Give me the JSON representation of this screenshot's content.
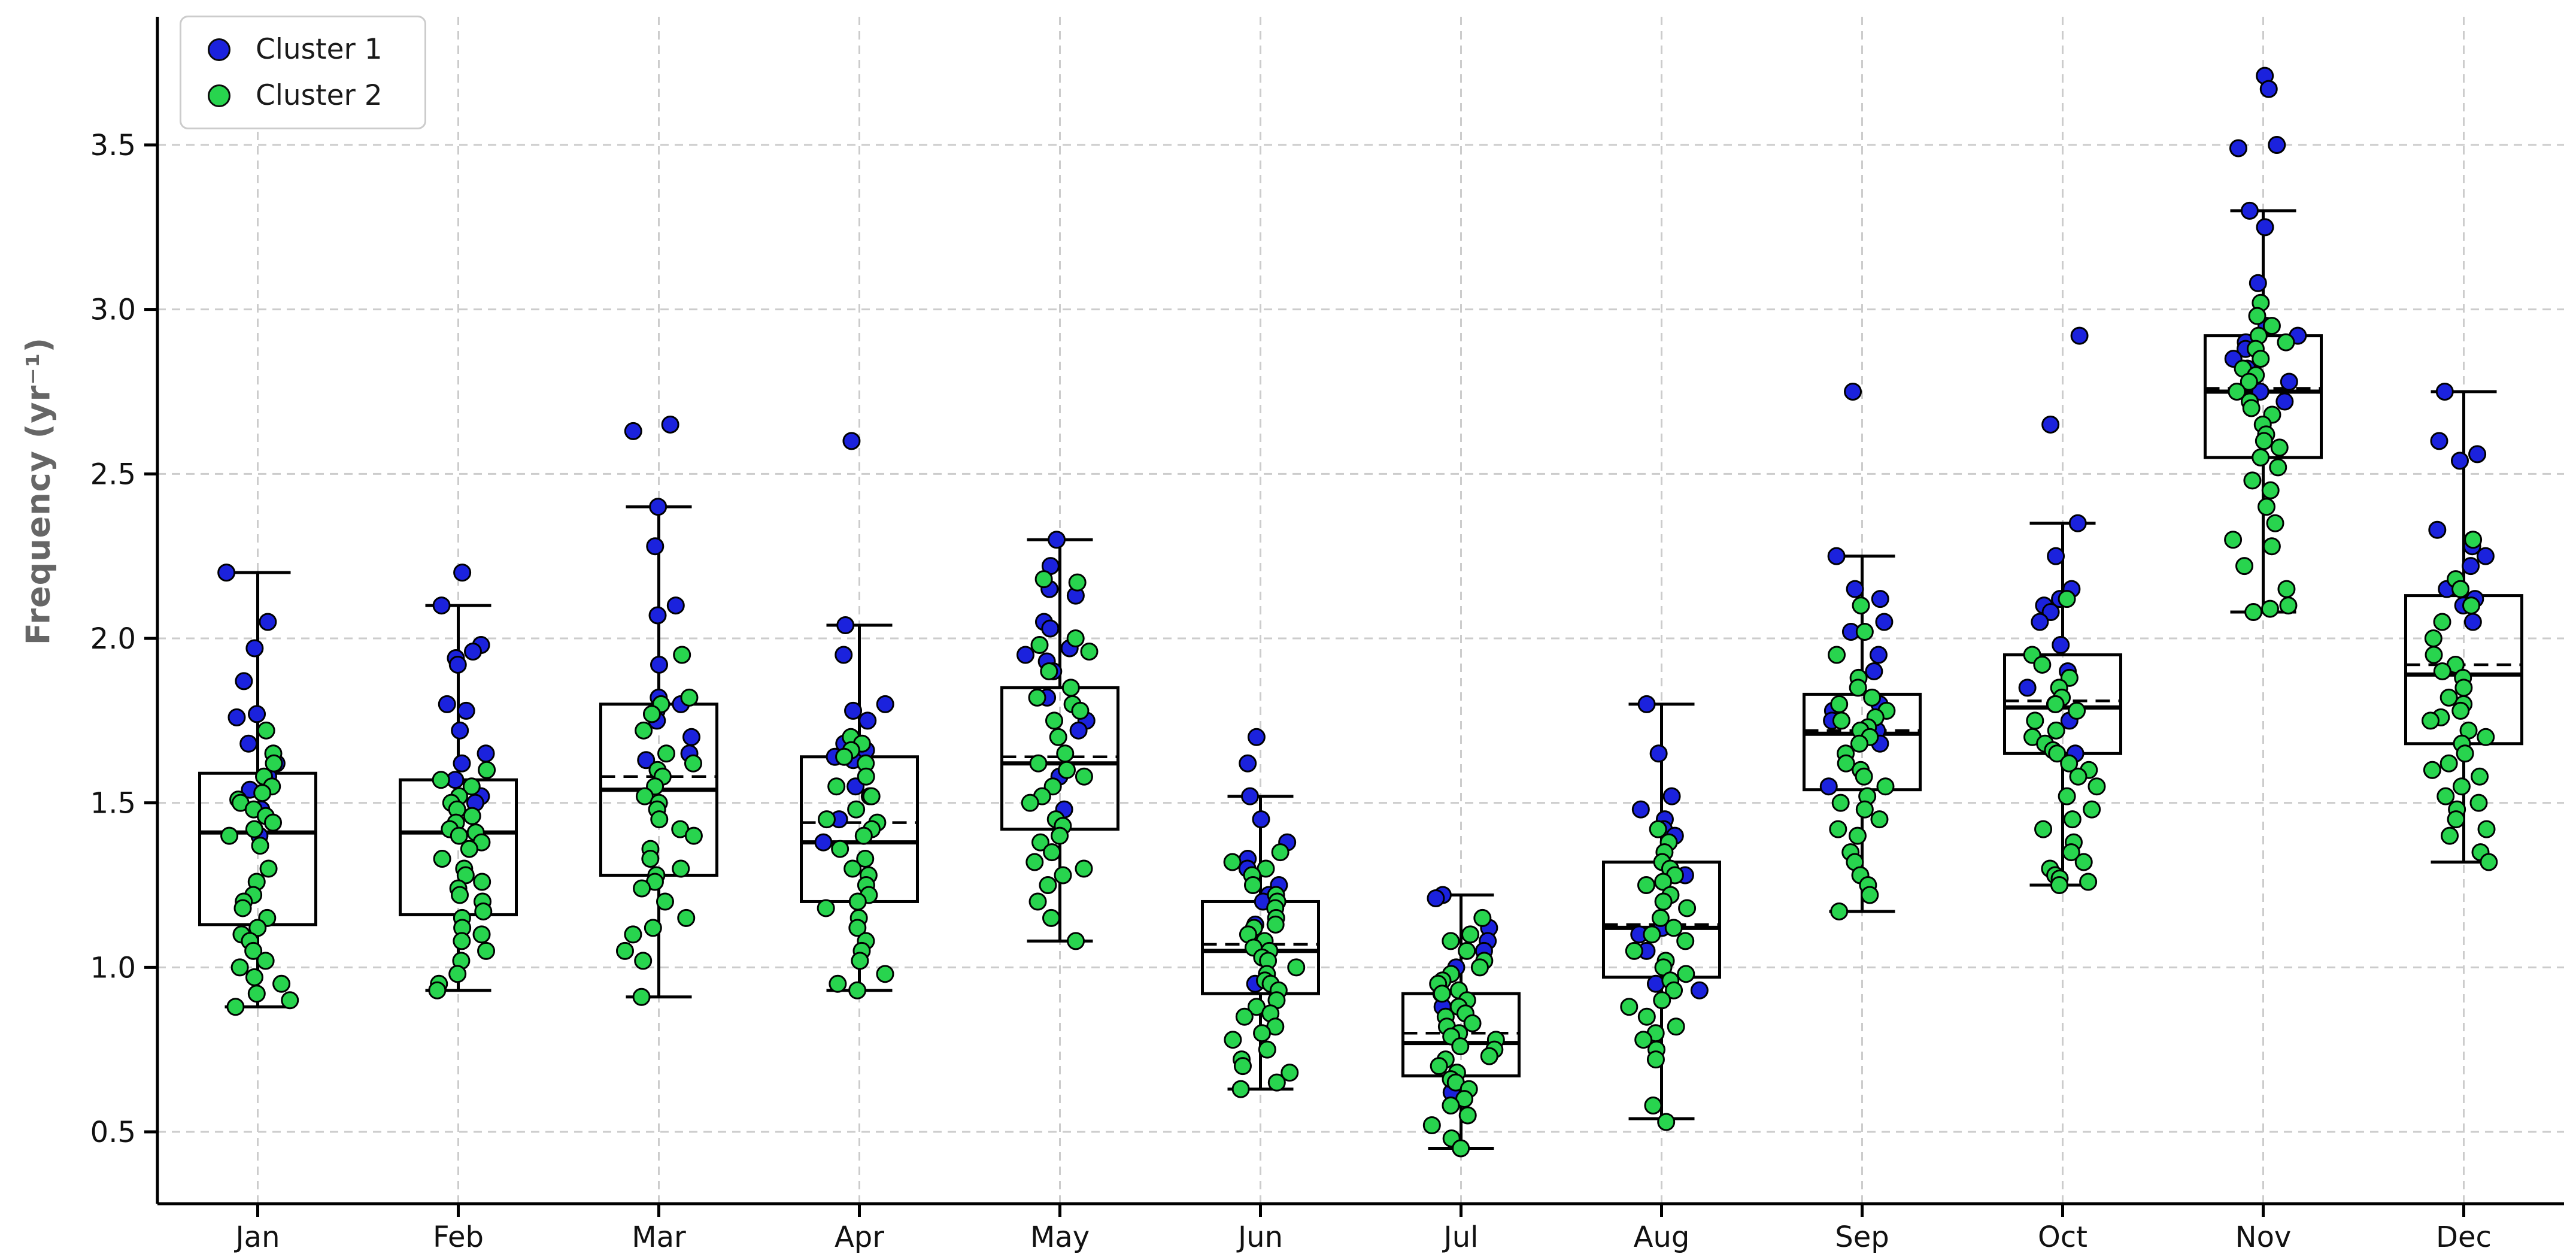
{
  "legend": {
    "items": [
      {
        "label": "Cluster 1",
        "color": "#1b22dd"
      },
      {
        "label": "Cluster 2",
        "color": "#28d44e"
      }
    ]
  },
  "chart_data": {
    "type": "boxplot_with_jitter_scatter",
    "title": "",
    "xlabel": "",
    "ylabel": "Frequency (yr⁻¹)",
    "categories": [
      "Jan",
      "Feb",
      "Mar",
      "Apr",
      "May",
      "Jun",
      "Jul",
      "Aug",
      "Sep",
      "Oct",
      "Nov",
      "Dec"
    ],
    "yticks": [
      0.5,
      1.0,
      1.5,
      2.0,
      2.5,
      3.0,
      3.5
    ],
    "ylim": [
      0.28,
      3.89
    ],
    "grid": "dashed, both axes",
    "legend_position": "upper left",
    "colors": {
      "cluster1": "#1b22dd",
      "cluster2": "#28d44e",
      "box_stroke": "#000000",
      "grid": "#cccccc",
      "axis": "#000000",
      "ylabel": "#666666",
      "tick_label": "#111111",
      "point_edge": "#000000"
    },
    "boxes": [
      {
        "month": "Jan",
        "whisker_low": 0.88,
        "q1": 1.13,
        "median": 1.41,
        "mean": 1.41,
        "q3": 1.59,
        "whisker_high": 2.2
      },
      {
        "month": "Feb",
        "whisker_low": 0.93,
        "q1": 1.16,
        "median": 1.41,
        "mean": 1.41,
        "q3": 1.57,
        "whisker_high": 2.1
      },
      {
        "month": "Mar",
        "whisker_low": 0.91,
        "q1": 1.28,
        "median": 1.54,
        "mean": 1.58,
        "q3": 1.8,
        "whisker_high": 2.4
      },
      {
        "month": "Apr",
        "whisker_low": 0.93,
        "q1": 1.2,
        "median": 1.38,
        "mean": 1.44,
        "q3": 1.64,
        "whisker_high": 2.04
      },
      {
        "month": "May",
        "whisker_low": 1.08,
        "q1": 1.42,
        "median": 1.62,
        "mean": 1.64,
        "q3": 1.85,
        "whisker_high": 2.3
      },
      {
        "month": "Jun",
        "whisker_low": 0.63,
        "q1": 0.92,
        "median": 1.05,
        "mean": 1.07,
        "q3": 1.2,
        "whisker_high": 1.52
      },
      {
        "month": "Jul",
        "whisker_low": 0.45,
        "q1": 0.67,
        "median": 0.77,
        "mean": 0.8,
        "q3": 0.92,
        "whisker_high": 1.22
      },
      {
        "month": "Aug",
        "whisker_low": 0.54,
        "q1": 0.97,
        "median": 1.12,
        "mean": 1.13,
        "q3": 1.32,
        "whisker_high": 1.8
      },
      {
        "month": "Sep",
        "whisker_low": 1.17,
        "q1": 1.54,
        "median": 1.71,
        "mean": 1.72,
        "q3": 1.83,
        "whisker_high": 2.25
      },
      {
        "month": "Oct",
        "whisker_low": 1.25,
        "q1": 1.65,
        "median": 1.79,
        "mean": 1.81,
        "q3": 1.95,
        "whisker_high": 2.35
      },
      {
        "month": "Nov",
        "whisker_low": 2.08,
        "q1": 2.55,
        "median": 2.75,
        "mean": 2.76,
        "q3": 2.92,
        "whisker_high": 3.3
      },
      {
        "month": "Dec",
        "whisker_low": 1.32,
        "q1": 1.68,
        "median": 1.89,
        "mean": 1.92,
        "q3": 2.13,
        "whisker_high": 2.75
      }
    ],
    "series": [
      {
        "name": "Cluster 1",
        "points_by_month": [
          [
            2.2,
            2.05,
            1.97,
            1.87,
            1.77,
            1.76,
            1.68,
            1.62,
            1.58,
            1.54,
            1.48,
            1.4
          ],
          [
            2.2,
            2.1,
            1.98,
            1.96,
            1.94,
            1.92,
            1.8,
            1.78,
            1.72,
            1.65,
            1.62,
            1.57,
            1.52,
            1.5
          ],
          [
            2.65,
            2.63,
            2.4,
            2.28,
            2.1,
            2.07,
            1.92,
            1.82,
            1.8,
            1.78,
            1.75,
            1.7,
            1.65,
            1.63
          ],
          [
            2.6,
            2.04,
            1.95,
            1.8,
            1.78,
            1.75,
            1.68,
            1.66,
            1.64,
            1.63,
            1.55,
            1.52,
            1.45,
            1.38
          ],
          [
            2.3,
            2.22,
            2.15,
            2.13,
            2.05,
            2.03,
            1.97,
            1.95,
            1.93,
            1.9,
            1.82,
            1.75,
            1.72,
            1.58,
            1.48
          ],
          [
            1.7,
            1.62,
            1.52,
            1.45,
            1.38,
            1.33,
            1.3,
            1.25,
            1.22,
            1.2,
            1.13,
            0.95
          ],
          [
            1.22,
            1.21,
            1.12,
            1.08,
            1.05,
            1.0,
            0.92,
            0.88,
            0.62
          ],
          [
            1.8,
            1.65,
            1.52,
            1.48,
            1.45,
            1.42,
            1.4,
            1.28,
            1.12,
            1.1,
            1.05,
            0.95,
            0.93
          ],
          [
            2.75,
            2.25,
            2.15,
            2.12,
            2.05,
            2.02,
            1.95,
            1.9,
            1.8,
            1.78,
            1.75,
            1.72,
            1.68,
            1.55
          ],
          [
            2.92,
            2.65,
            2.35,
            2.25,
            2.15,
            2.12,
            2.1,
            2.08,
            2.05,
            1.98,
            1.9,
            1.85,
            1.8,
            1.75,
            1.65
          ],
          [
            3.71,
            3.67,
            3.5,
            3.49,
            3.3,
            3.25,
            3.08,
            2.95,
            2.92,
            2.9,
            2.88,
            2.85,
            2.82,
            2.78,
            2.75,
            2.72
          ],
          [
            2.75,
            2.6,
            2.56,
            2.54,
            2.33,
            2.3,
            2.28,
            2.25,
            2.22,
            2.15,
            2.12,
            2.1,
            2.05
          ]
        ]
      },
      {
        "name": "Cluster 2",
        "points_by_month": [
          [
            1.72,
            1.65,
            1.62,
            1.58,
            1.55,
            1.53,
            1.51,
            1.5,
            1.48,
            1.46,
            1.44,
            1.42,
            1.4,
            1.37,
            1.3,
            1.26,
            1.22,
            1.2,
            1.18,
            1.15,
            1.12,
            1.1,
            1.08,
            1.05,
            1.02,
            1.0,
            0.97,
            0.95,
            0.92,
            0.9,
            0.88
          ],
          [
            1.6,
            1.57,
            1.55,
            1.52,
            1.5,
            1.48,
            1.46,
            1.44,
            1.42,
            1.41,
            1.4,
            1.38,
            1.36,
            1.33,
            1.3,
            1.28,
            1.26,
            1.24,
            1.22,
            1.2,
            1.17,
            1.15,
            1.12,
            1.1,
            1.08,
            1.05,
            1.02,
            0.98,
            0.95,
            0.93
          ],
          [
            1.95,
            1.82,
            1.8,
            1.77,
            1.72,
            1.65,
            1.62,
            1.6,
            1.58,
            1.55,
            1.52,
            1.5,
            1.48,
            1.45,
            1.42,
            1.4,
            1.36,
            1.33,
            1.3,
            1.28,
            1.26,
            1.24,
            1.2,
            1.15,
            1.12,
            1.1,
            1.05,
            1.02,
            0.91
          ],
          [
            1.7,
            1.68,
            1.66,
            1.64,
            1.62,
            1.58,
            1.55,
            1.52,
            1.48,
            1.45,
            1.44,
            1.42,
            1.4,
            1.36,
            1.33,
            1.3,
            1.28,
            1.25,
            1.22,
            1.2,
            1.18,
            1.15,
            1.12,
            1.08,
            1.05,
            1.02,
            0.98,
            0.95,
            0.93
          ],
          [
            2.18,
            2.17,
            2.0,
            1.98,
            1.96,
            1.9,
            1.85,
            1.82,
            1.8,
            1.78,
            1.75,
            1.7,
            1.65,
            1.62,
            1.6,
            1.58,
            1.55,
            1.52,
            1.5,
            1.45,
            1.43,
            1.4,
            1.38,
            1.35,
            1.32,
            1.3,
            1.28,
            1.25,
            1.2,
            1.15,
            1.08
          ],
          [
            1.35,
            1.32,
            1.3,
            1.28,
            1.25,
            1.22,
            1.2,
            1.18,
            1.15,
            1.13,
            1.12,
            1.1,
            1.08,
            1.06,
            1.05,
            1.03,
            1.02,
            1.0,
            0.98,
            0.96,
            0.95,
            0.93,
            0.9,
            0.88,
            0.86,
            0.85,
            0.82,
            0.8,
            0.78,
            0.75,
            0.72,
            0.7,
            0.68,
            0.65,
            0.63
          ],
          [
            1.15,
            1.1,
            1.08,
            1.05,
            1.02,
            1.0,
            0.98,
            0.96,
            0.95,
            0.93,
            0.92,
            0.9,
            0.88,
            0.86,
            0.85,
            0.83,
            0.82,
            0.8,
            0.79,
            0.78,
            0.76,
            0.75,
            0.73,
            0.72,
            0.7,
            0.68,
            0.66,
            0.65,
            0.63,
            0.6,
            0.58,
            0.55,
            0.52,
            0.48,
            0.45
          ],
          [
            1.42,
            1.38,
            1.35,
            1.32,
            1.3,
            1.28,
            1.26,
            1.25,
            1.22,
            1.2,
            1.18,
            1.15,
            1.12,
            1.1,
            1.08,
            1.05,
            1.02,
            1.0,
            0.98,
            0.96,
            0.93,
            0.9,
            0.88,
            0.85,
            0.82,
            0.8,
            0.78,
            0.75,
            0.72,
            0.58,
            0.53
          ],
          [
            2.1,
            2.02,
            1.95,
            1.88,
            1.85,
            1.82,
            1.8,
            1.78,
            1.76,
            1.75,
            1.73,
            1.72,
            1.7,
            1.68,
            1.65,
            1.62,
            1.6,
            1.58,
            1.55,
            1.52,
            1.5,
            1.48,
            1.45,
            1.42,
            1.4,
            1.35,
            1.32,
            1.28,
            1.25,
            1.22,
            1.17
          ],
          [
            2.12,
            1.95,
            1.92,
            1.88,
            1.85,
            1.82,
            1.8,
            1.78,
            1.75,
            1.72,
            1.7,
            1.68,
            1.66,
            1.65,
            1.62,
            1.6,
            1.58,
            1.55,
            1.52,
            1.48,
            1.45,
            1.42,
            1.38,
            1.35,
            1.32,
            1.3,
            1.28,
            1.27,
            1.26,
            1.25
          ],
          [
            3.02,
            2.98,
            2.95,
            2.92,
            2.9,
            2.88,
            2.85,
            2.82,
            2.8,
            2.78,
            2.75,
            2.72,
            2.7,
            2.68,
            2.65,
            2.62,
            2.6,
            2.58,
            2.55,
            2.52,
            2.48,
            2.45,
            2.4,
            2.35,
            2.3,
            2.28,
            2.22,
            2.15,
            2.1,
            2.09,
            2.08
          ],
          [
            2.3,
            2.18,
            2.15,
            2.1,
            2.05,
            2.0,
            1.95,
            1.92,
            1.9,
            1.88,
            1.85,
            1.82,
            1.8,
            1.78,
            1.76,
            1.75,
            1.72,
            1.7,
            1.68,
            1.65,
            1.62,
            1.6,
            1.58,
            1.55,
            1.52,
            1.5,
            1.48,
            1.45,
            1.42,
            1.4,
            1.35,
            1.32
          ]
        ]
      }
    ]
  }
}
